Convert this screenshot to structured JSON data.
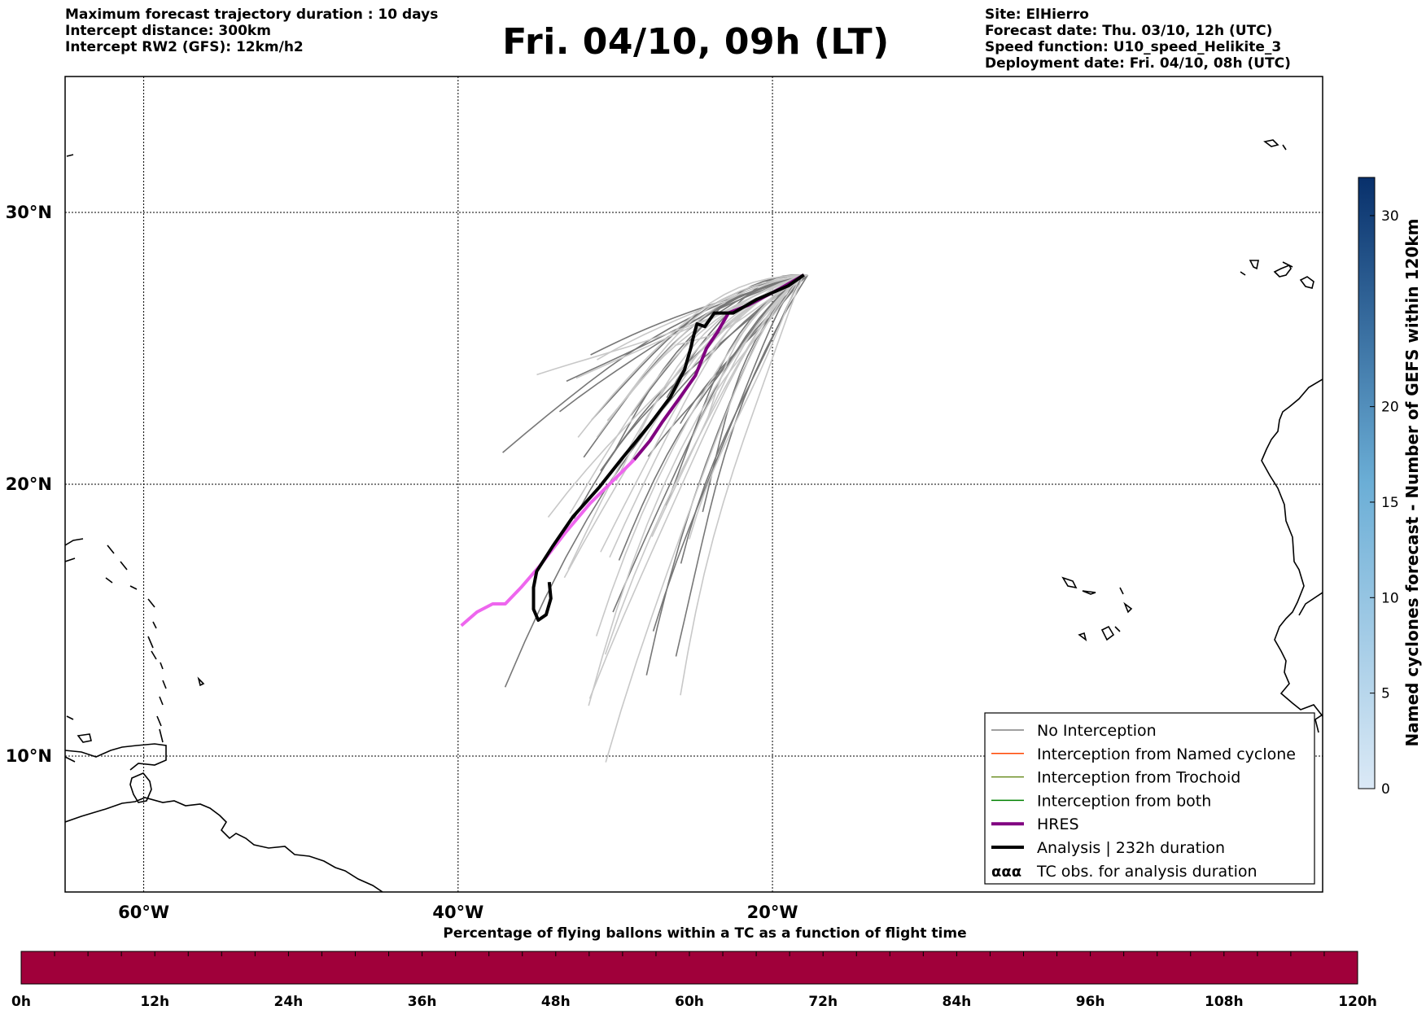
{
  "header": {
    "left_lines": [
      "Maximum forecast trajectory duration : 10 days",
      "Intercept distance: 300km",
      "Intercept RW2 (GFS):  12km/h2"
    ],
    "title": "Fri. 04/10, 09h (LT)",
    "right_lines": [
      "Site: ElHierro",
      "Forecast date: Thu. 03/10, 12h (UTC)",
      "Speed function: U10_speed_Helikite_3",
      "Deployment date: Fri. 04/10, 08h (UTC)"
    ]
  },
  "map": {
    "lon_range": [
      -65,
      15
    ],
    "lat_range": [
      5,
      35
    ],
    "lat_labels": [
      "30°N",
      "20°N",
      "10°N"
    ],
    "lat_values": [
      30,
      20,
      10
    ],
    "lon_labels": [
      "60°W",
      "40°W",
      "20°W"
    ],
    "lon_values": [
      -60,
      -40,
      -20
    ]
  },
  "legend": {
    "items": [
      {
        "label": "No Interception",
        "color": "#808080",
        "style": "thin"
      },
      {
        "label": "Interception from Named cyclone",
        "color": "#ff4500",
        "style": "thin"
      },
      {
        "label": "Interception from Trochoid",
        "color": "#6b8e23",
        "style": "thin"
      },
      {
        "label": "Interception from both",
        "color": "#008000",
        "style": "thin"
      },
      {
        "label": "HRES",
        "color": "#800080",
        "style": "thick"
      },
      {
        "label": "Analysis | 232h duration",
        "color": "#000000",
        "style": "thick"
      },
      {
        "label": "TC obs. for analysis duration",
        "color": "#000000",
        "style": "symbol"
      }
    ]
  },
  "side_colorbar": {
    "label": "Named cyclones forecast - Number of GEFS within 120km",
    "ticks": [
      "0",
      "5",
      "10",
      "15",
      "20",
      "30"
    ],
    "tick_values": [
      0,
      5,
      10,
      15,
      20,
      30
    ],
    "max": 32,
    "color_low": "#dbe9f6",
    "color_high": "#08306b"
  },
  "bottom_colorbar": {
    "title": "Percentage of flying ballons within a TC as a function of flight time",
    "ticks": [
      "0h",
      "12h",
      "24h",
      "36h",
      "48h",
      "60h",
      "72h",
      "84h",
      "96h",
      "108h",
      "120h"
    ],
    "fill_color": "#a0003a"
  },
  "site": {
    "name": "ElHierro",
    "lon": -18.0,
    "lat": 27.7
  },
  "trajectories": {
    "analysis": [
      [
        -18.0,
        27.7
      ],
      [
        -19.0,
        27.3
      ],
      [
        -21.0,
        26.8
      ],
      [
        -22.5,
        26.3
      ],
      [
        -23.7,
        26.3
      ],
      [
        -24.3,
        25.8
      ],
      [
        -24.8,
        25.9
      ],
      [
        -25.0,
        25.5
      ],
      [
        -25.2,
        25.0
      ],
      [
        -25.6,
        24.2
      ],
      [
        -26.5,
        23.2
      ],
      [
        -27.8,
        22.2
      ],
      [
        -29.5,
        21.0
      ],
      [
        -31.0,
        19.9
      ],
      [
        -32.7,
        18.8
      ],
      [
        -34.0,
        17.7
      ],
      [
        -35.0,
        16.8
      ],
      [
        -35.2,
        16.2
      ],
      [
        -35.2,
        15.4
      ],
      [
        -34.9,
        15.0
      ],
      [
        -34.4,
        15.2
      ],
      [
        -34.1,
        15.8
      ],
      [
        -34.2,
        16.4
      ]
    ],
    "hres": [
      [
        -18.0,
        27.7
      ],
      [
        -19.5,
        27.2
      ],
      [
        -21.5,
        26.6
      ],
      [
        -22.8,
        26.3
      ],
      [
        -23.5,
        25.6
      ],
      [
        -24.2,
        25.0
      ],
      [
        -24.9,
        24.0
      ],
      [
        -26.0,
        23.1
      ],
      [
        -27.0,
        22.3
      ],
      [
        -27.8,
        21.6
      ],
      [
        -28.8,
        20.9
      ],
      [
        -30.2,
        20.1
      ],
      [
        -31.6,
        19.3
      ],
      [
        -33.2,
        18.2
      ],
      [
        -34.8,
        17.0
      ],
      [
        -36.0,
        16.2
      ],
      [
        -37.0,
        15.6
      ],
      [
        -37.8,
        15.6
      ],
      [
        -38.8,
        15.3
      ],
      [
        -39.8,
        14.8
      ]
    ]
  }
}
